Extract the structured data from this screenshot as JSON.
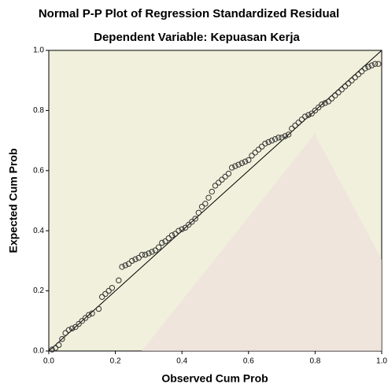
{
  "chart_data": {
    "type": "scatter",
    "title": "Normal P-P Plot of Regression Standardized Residual",
    "subtitle": "Dependent Variable: Kepuasan Kerja",
    "x_label": "Observed Cum Prob",
    "y_label": "Expected Cum Prob",
    "xlim": [
      0,
      1
    ],
    "ylim": [
      0,
      1
    ],
    "xticks": [
      {
        "value": 0,
        "label": "0.0"
      },
      0.2,
      0.4,
      0.6,
      0.8,
      {
        "value": 1,
        "label": "1.0"
      }
    ],
    "yticks": [
      {
        "value": 0,
        "label": "0.0"
      },
      0.2,
      0.4,
      0.6,
      0.8,
      {
        "value": 1,
        "label": "1.0"
      }
    ],
    "reference_line": true,
    "series": [
      {
        "color": "#333333",
        "x": [
          0.01,
          0.02,
          0.03,
          0.04,
          0.05,
          0.06,
          0.07,
          0.08,
          0.09,
          0.1,
          0.11,
          0.12,
          0.13,
          0.15,
          0.16,
          0.17,
          0.18,
          0.19,
          0.21,
          0.22,
          0.23,
          0.24,
          0.25,
          0.26,
          0.27,
          0.28,
          0.29,
          0.3,
          0.31,
          0.32,
          0.33,
          0.34,
          0.35,
          0.36,
          0.37,
          0.38,
          0.39,
          0.4,
          0.41,
          0.42,
          0.43,
          0.44,
          0.45,
          0.46,
          0.47,
          0.48,
          0.49,
          0.5,
          0.51,
          0.52,
          0.53,
          0.54,
          0.55,
          0.56,
          0.57,
          0.58,
          0.59,
          0.6,
          0.61,
          0.62,
          0.63,
          0.64,
          0.65,
          0.66,
          0.67,
          0.68,
          0.69,
          0.7,
          0.71,
          0.72,
          0.73,
          0.74,
          0.75,
          0.76,
          0.77,
          0.78,
          0.79,
          0.8,
          0.81,
          0.82,
          0.83,
          0.84,
          0.85,
          0.86,
          0.87,
          0.88,
          0.89,
          0.9,
          0.91,
          0.92,
          0.93,
          0.94,
          0.95,
          0.96,
          0.97,
          0.98,
          0.99
        ],
        "values": [
          0.005,
          0.01,
          0.02,
          0.04,
          0.06,
          0.07,
          0.075,
          0.08,
          0.09,
          0.1,
          0.11,
          0.12,
          0.125,
          0.14,
          0.18,
          0.19,
          0.2,
          0.21,
          0.235,
          0.28,
          0.285,
          0.29,
          0.3,
          0.305,
          0.31,
          0.32,
          0.32,
          0.325,
          0.33,
          0.335,
          0.345,
          0.36,
          0.365,
          0.375,
          0.385,
          0.39,
          0.4,
          0.405,
          0.41,
          0.42,
          0.43,
          0.44,
          0.46,
          0.48,
          0.49,
          0.51,
          0.53,
          0.55,
          0.56,
          0.57,
          0.58,
          0.59,
          0.61,
          0.615,
          0.62,
          0.625,
          0.63,
          0.635,
          0.65,
          0.66,
          0.67,
          0.68,
          0.69,
          0.695,
          0.7,
          0.705,
          0.71,
          0.71,
          0.715,
          0.72,
          0.74,
          0.75,
          0.76,
          0.77,
          0.78,
          0.785,
          0.79,
          0.8,
          0.81,
          0.82,
          0.825,
          0.83,
          0.84,
          0.85,
          0.86,
          0.87,
          0.88,
          0.89,
          0.9,
          0.91,
          0.92,
          0.93,
          0.94,
          0.945,
          0.95,
          0.955,
          0.955
        ]
      }
    ]
  }
}
